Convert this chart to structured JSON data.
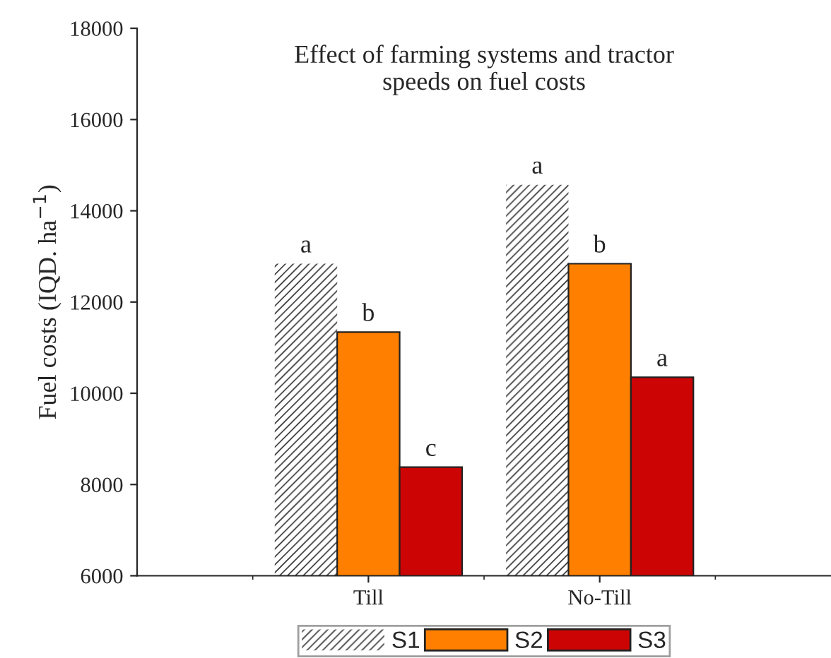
{
  "chart_data": {
    "type": "bar",
    "title": "Effect of farming systems and tractor\nspeeds on fuel costs",
    "ylabel": "Fuel costs (IQD. ha$^{−1}$)",
    "categories": [
      "Till",
      "No-Till"
    ],
    "series": [
      {
        "name": "S1",
        "color": "#ffffff",
        "values": [
          12840,
          14570
        ],
        "value_labels": [
          "a",
          "a"
        ]
      },
      {
        "name": "S2",
        "color": "#ff8000",
        "values": [
          11340,
          12840
        ],
        "value_labels": [
          "b",
          "b"
        ]
      },
      {
        "name": "S3",
        "color": "#cc0404",
        "values": [
          8380,
          10350
        ],
        "value_labels": [
          "c",
          "a"
        ]
      }
    ],
    "ylim": [
      6000,
      18000
    ],
    "yticks": [
      6000,
      8000,
      10000,
      12000,
      14000,
      16000,
      18000
    ],
    "grid": false,
    "legend": "bottom"
  }
}
